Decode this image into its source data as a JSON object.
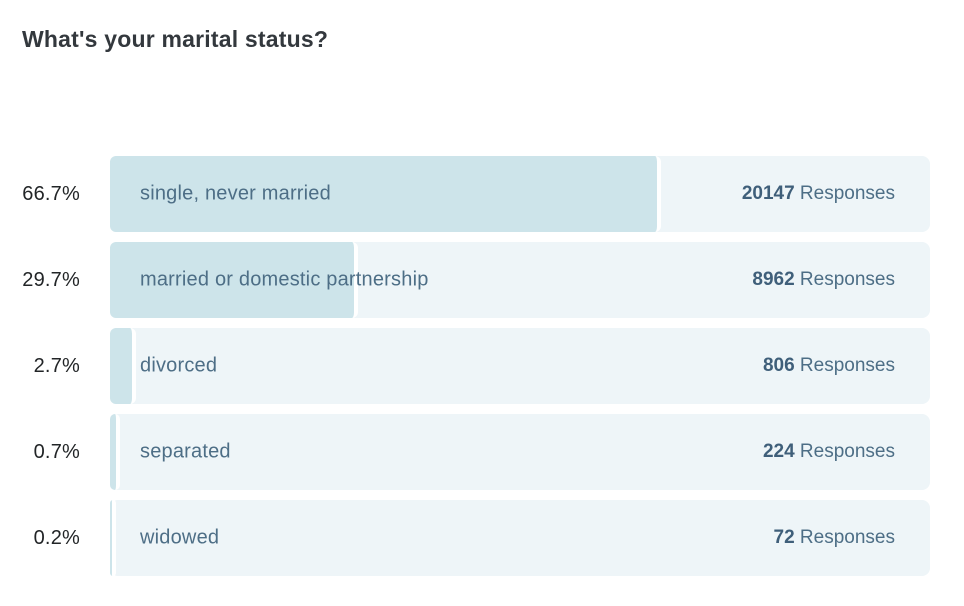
{
  "title": "What's your marital status?",
  "colors": {
    "bar_fill": "#cde4ea",
    "track": "#eef5f8",
    "category_text": "#4d6e86",
    "value_text": "#3f5f7a",
    "percent_text": "#222527",
    "title_text": "#33383d"
  },
  "chart_data": {
    "type": "bar",
    "orientation": "horizontal",
    "title": "What's your marital status?",
    "categories": [
      "single, never married",
      "married or domestic partnership",
      "divorced",
      "separated",
      "widowed"
    ],
    "percentages": [
      66.7,
      29.7,
      2.7,
      0.7,
      0.2
    ],
    "responses": [
      20147,
      8962,
      806,
      224,
      72
    ],
    "value_suffix": "Responses",
    "xlim": [
      0,
      100
    ],
    "grid": false,
    "legend": false
  },
  "rows": [
    {
      "percent": "66.7%",
      "label": "single, never married",
      "count": "20147",
      "suffix": " Responses"
    },
    {
      "percent": "29.7%",
      "label": "married or domestic partnership",
      "count": "8962",
      "suffix": " Responses"
    },
    {
      "percent": "2.7%",
      "label": "divorced",
      "count": "806",
      "suffix": " Responses"
    },
    {
      "percent": "0.7%",
      "label": "separated",
      "count": "224",
      "suffix": " Responses"
    },
    {
      "percent": "0.2%",
      "label": "widowed",
      "count": "72",
      "suffix": " Responses"
    }
  ]
}
